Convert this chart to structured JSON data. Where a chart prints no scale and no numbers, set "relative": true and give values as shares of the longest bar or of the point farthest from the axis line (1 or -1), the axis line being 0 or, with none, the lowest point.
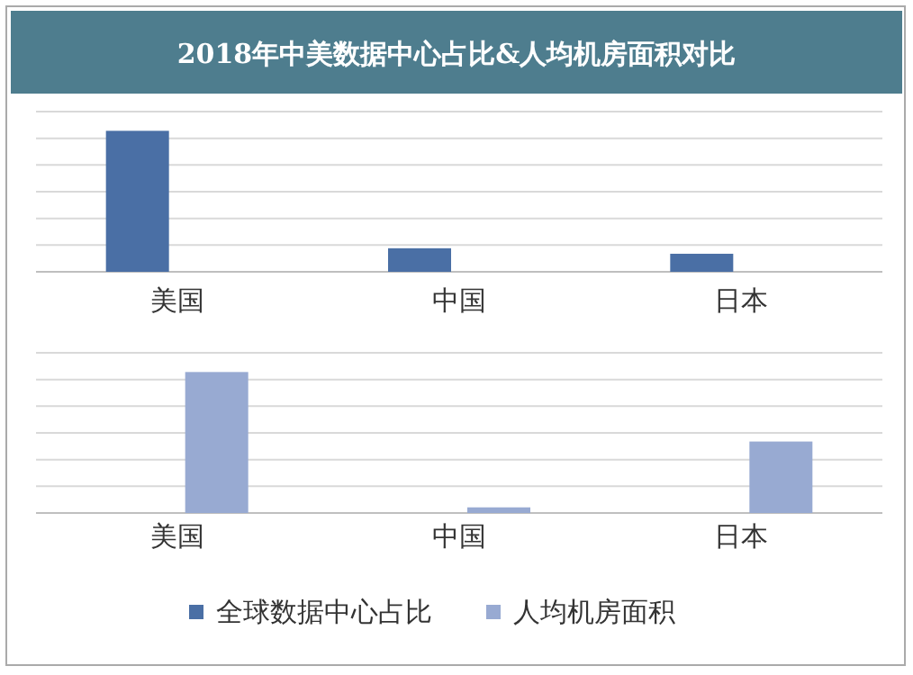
{
  "chart_data": [
    {
      "type": "bar",
      "title": "2018年中美数据中心占比&人均机房面积对比",
      "relative": true,
      "grid": "y",
      "legend": "bottom",
      "categories": [
        "美国",
        "中国",
        "日本"
      ],
      "series": [
        {
          "name": "全球数据中心占比",
          "color": "#4a6fa5",
          "values": [
            1,
            0.167,
            0.128
          ]
        }
      ]
    },
    {
      "type": "bar",
      "relative": true,
      "grid": "y",
      "legend": "bottom",
      "categories": [
        "美国",
        "中国",
        "日本"
      ],
      "series": [
        {
          "name": "人均机房面积",
          "color": "#98aad2",
          "values": [
            1,
            0.04,
            0.507
          ]
        }
      ]
    }
  ]
}
